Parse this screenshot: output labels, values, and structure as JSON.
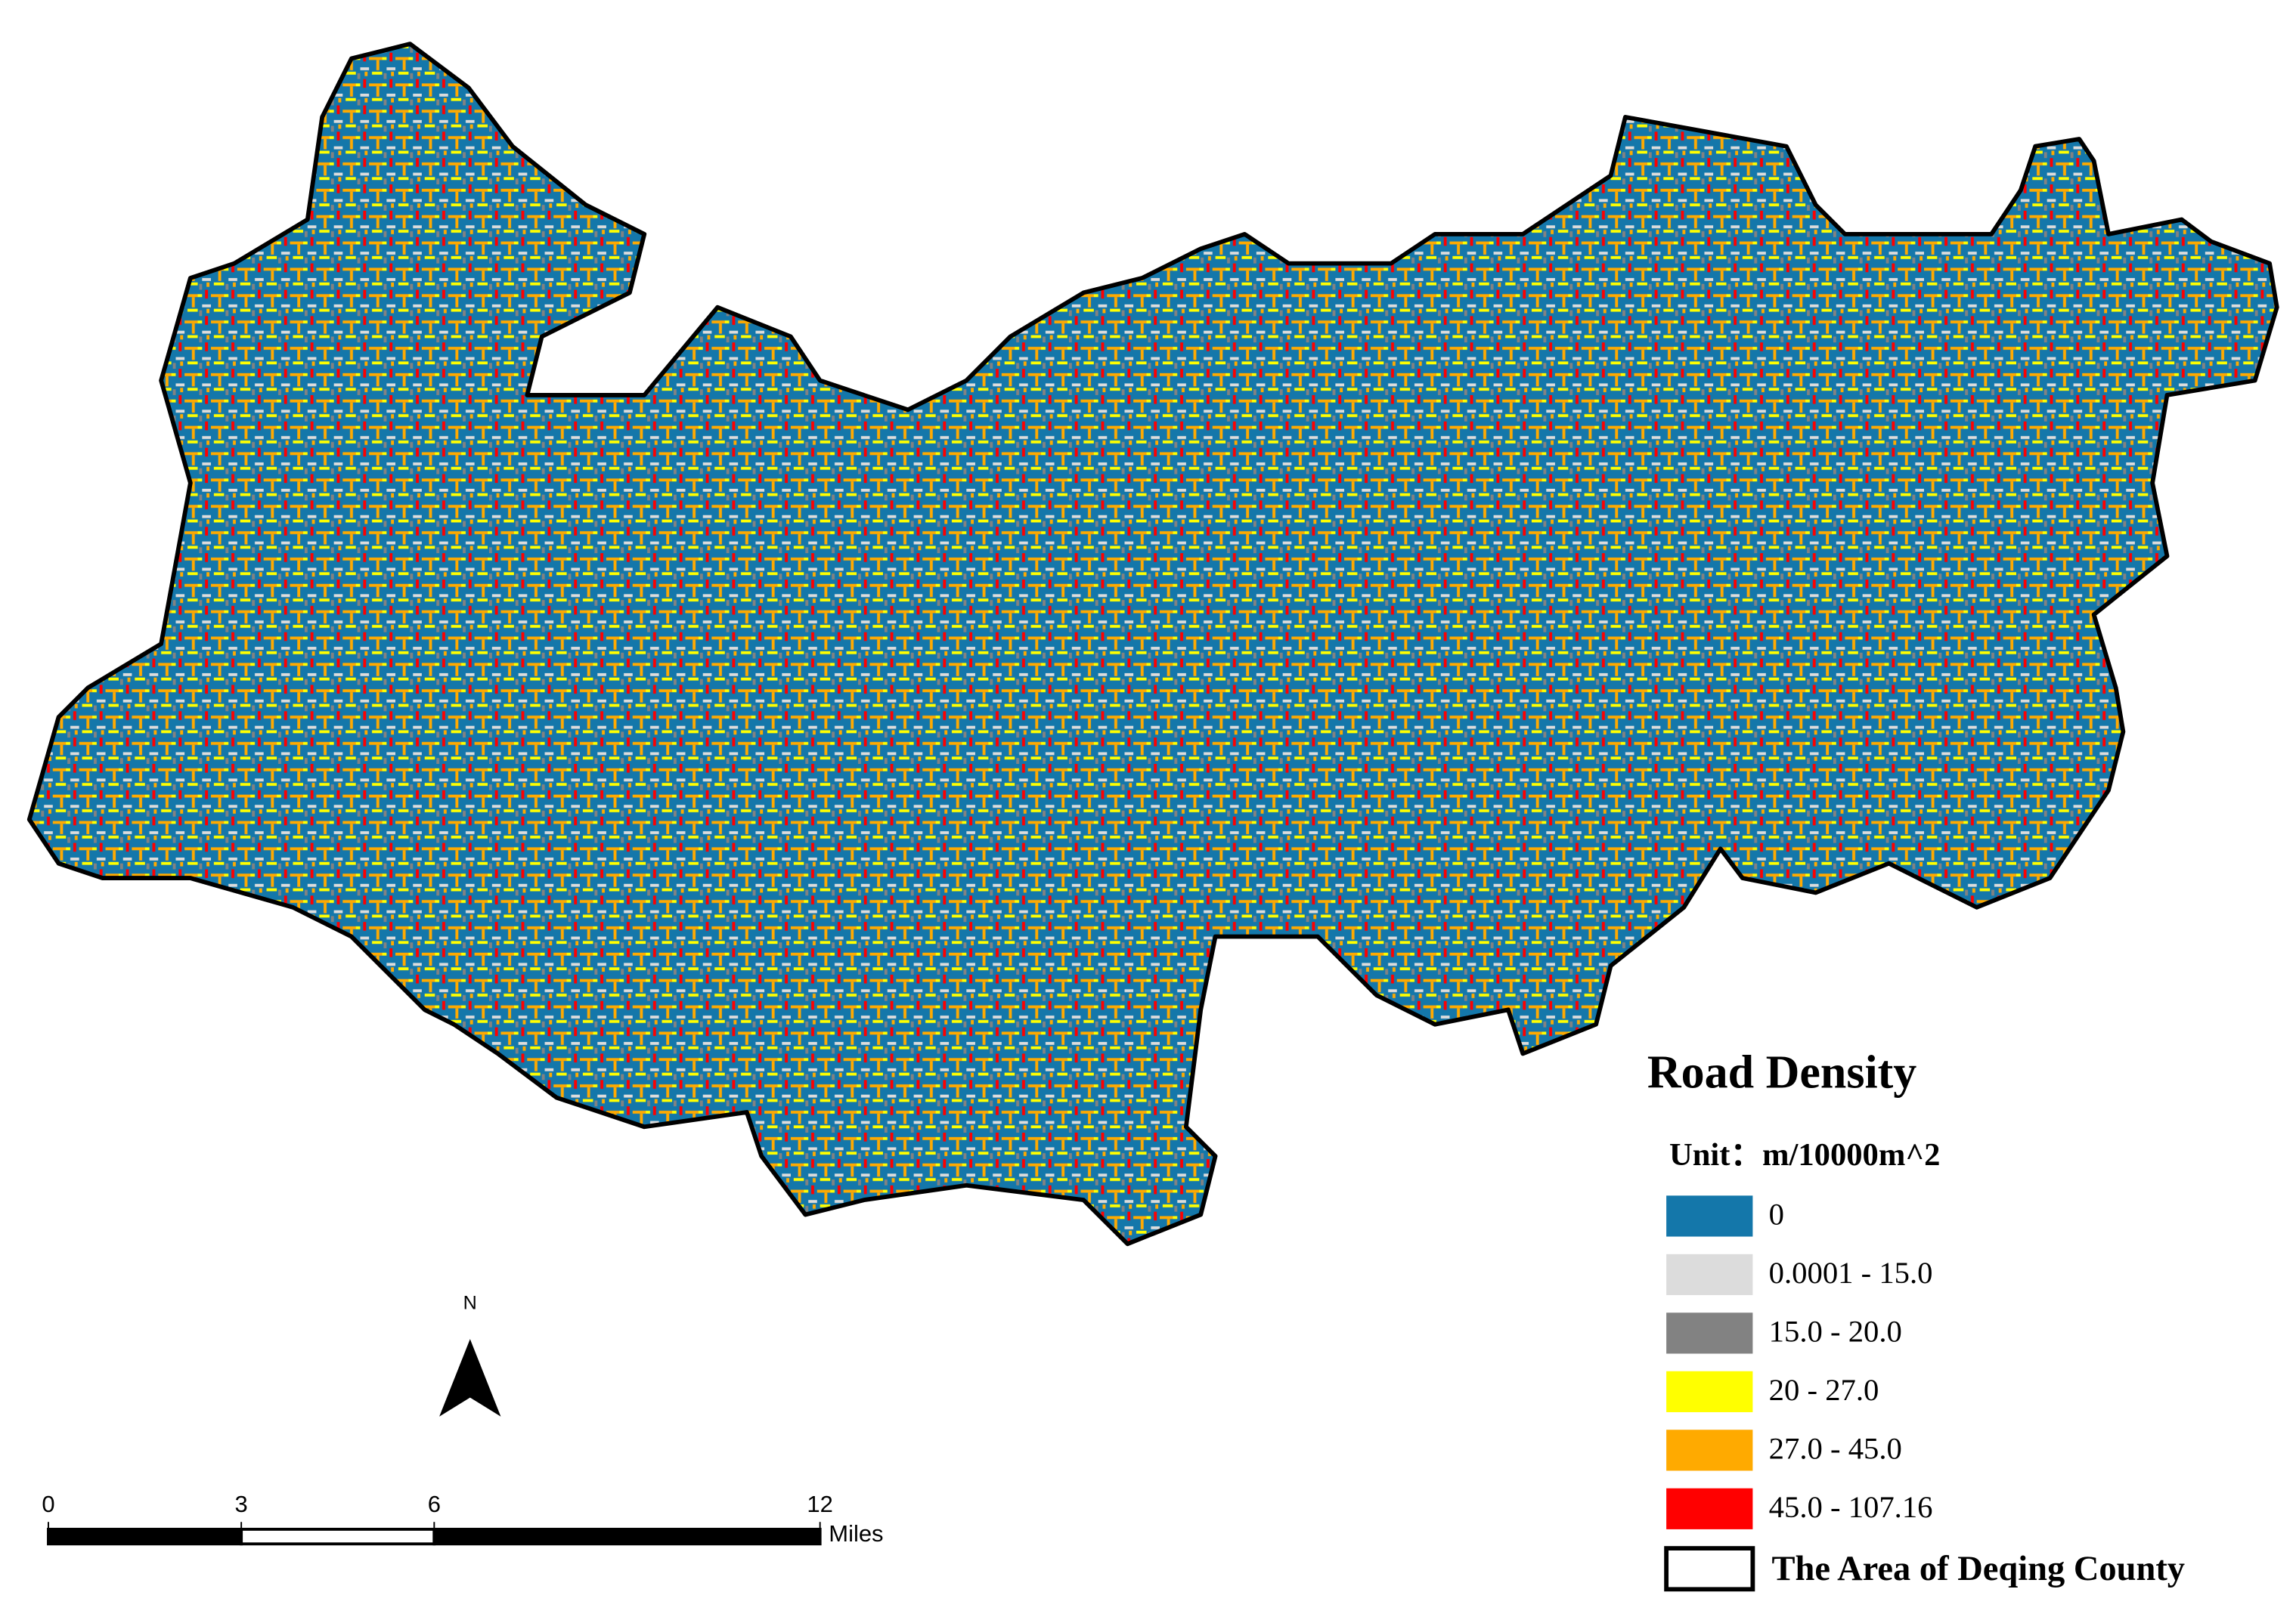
{
  "title": "Road Density",
  "unit": "Unit：m/10000m^2",
  "legend": [
    {
      "label": "0",
      "color": "#1477aa"
    },
    {
      "label": "0.0001 - 15.0",
      "color": "#dcdcdc"
    },
    {
      "label": "15.0 - 20.0",
      "color": "#828282"
    },
    {
      "label": "20 - 27.0",
      "color": "#ffff00"
    },
    {
      "label": "27.0 - 45.0",
      "color": "#ffaa00"
    },
    {
      "label": "45.0 - 107.16",
      "color": "#ff0000"
    }
  ],
  "boundary_label": "The Area of Deqing County",
  "north": "N",
  "scale_bar": {
    "ticks": [
      0,
      3,
      6,
      12
    ],
    "unit": "Miles"
  }
}
